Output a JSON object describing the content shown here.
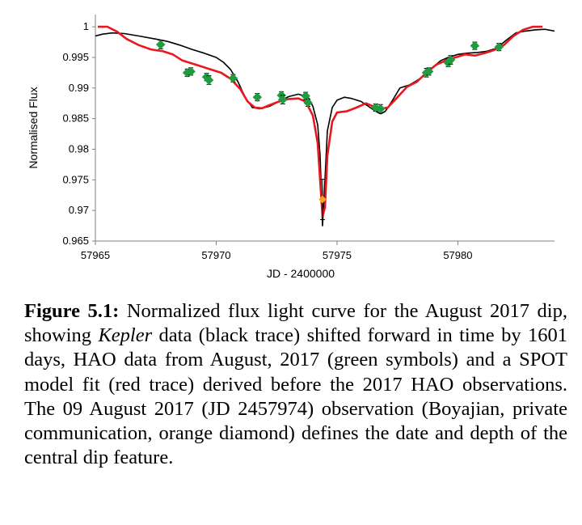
{
  "chart_data": {
    "type": "line",
    "xlabel": "JD - 2400000",
    "ylabel": "Normalised Flux",
    "xlim": [
      57965,
      57984
    ],
    "ylim": [
      0.965,
      1.002
    ],
    "x_ticks": [
      57965,
      57970,
      57975,
      57980
    ],
    "x_tick_labels": [
      "57965",
      "57970",
      "57975",
      "57980"
    ],
    "y_ticks": [
      0.965,
      0.97,
      0.975,
      0.98,
      0.985,
      0.99,
      0.995,
      1
    ],
    "y_tick_labels": [
      "0.965",
      "0.97",
      "0.975",
      "0.98",
      "0.985",
      "0.99",
      "0.995",
      "1"
    ],
    "grid": false,
    "legend": "none",
    "series": [
      {
        "kind": "line",
        "color": "#000000",
        "x": [
          57965,
          57965.3,
          57965.7,
          57966.2,
          57966.8,
          57967.5,
          57968.0,
          57968.5,
          57969.0,
          57969.5,
          57970.0,
          57970.3,
          57970.6,
          57970.9,
          57971.2,
          57971.5,
          57971.8,
          57972.2,
          57972.6,
          57973.0,
          57973.4,
          57973.8,
          57974.0,
          57974.2,
          57974.3,
          57974.4,
          57974.5,
          57974.6,
          57974.8,
          57975.0,
          57975.3,
          57975.6,
          57976.0,
          57976.3,
          57976.6,
          57976.8,
          57977.0,
          57977.3,
          57977.6,
          57978.0,
          57978.3,
          57978.6,
          57979.0,
          57979.3,
          57979.6,
          57980.0,
          57980.4,
          57980.8,
          57981.2,
          57981.6,
          57982.0,
          57982.4,
          57982.8,
          57983.2,
          57983.6,
          57984
        ],
        "y": [
          0.9985,
          0.9988,
          0.999,
          0.9989,
          0.9985,
          0.998,
          0.9976,
          0.997,
          0.9963,
          0.9957,
          0.995,
          0.9942,
          0.993,
          0.991,
          0.9885,
          0.9868,
          0.9866,
          0.987,
          0.9878,
          0.9886,
          0.989,
          0.9885,
          0.987,
          0.984,
          0.979,
          0.9675,
          0.975,
          0.983,
          0.9868,
          0.988,
          0.9885,
          0.9883,
          0.9878,
          0.987,
          0.9862,
          0.9858,
          0.9862,
          0.988,
          0.99,
          0.9905,
          0.9912,
          0.992,
          0.9935,
          0.9945,
          0.995,
          0.9955,
          0.9957,
          0.9958,
          0.996,
          0.9965,
          0.9978,
          0.999,
          0.9993,
          0.9995,
          0.9996,
          0.9993
        ]
      },
      {
        "kind": "line",
        "color": "#e8191e",
        "x": [
          57965.1,
          57965.5,
          57965.9,
          57966.3,
          57966.8,
          57967.3,
          57967.8,
          57968.2,
          57968.6,
          57969.0,
          57969.4,
          57969.8,
          57970.2,
          57970.6,
          57971.0,
          57971.3,
          57971.6,
          57971.9,
          57972.2,
          57972.6,
          57973.0,
          57973.4,
          57973.7,
          57974.0,
          57974.2,
          57974.3,
          57974.4,
          57974.5,
          57974.6,
          57974.8,
          57975.0,
          57975.4,
          57975.8,
          57976.2,
          57976.5,
          57976.8,
          57977.1,
          57977.5,
          57977.9,
          57978.3,
          57978.7,
          57979.1,
          57979.5,
          57979.9,
          57980.3,
          57980.7,
          57981.1,
          57981.5,
          57981.9,
          57982.3,
          57982.7,
          57983.1,
          57983.5
        ],
        "y": [
          1.0,
          1.0,
          0.9992,
          0.998,
          0.997,
          0.9963,
          0.996,
          0.9955,
          0.9945,
          0.994,
          0.9935,
          0.993,
          0.9925,
          0.9915,
          0.9898,
          0.9878,
          0.9868,
          0.9867,
          0.9872,
          0.9878,
          0.9882,
          0.9883,
          0.9878,
          0.9855,
          0.981,
          0.975,
          0.969,
          0.9705,
          0.979,
          0.9845,
          0.986,
          0.9862,
          0.9868,
          0.9875,
          0.987,
          0.9866,
          0.9868,
          0.9885,
          0.9902,
          0.991,
          0.9925,
          0.9938,
          0.9945,
          0.995,
          0.9955,
          0.9953,
          0.9957,
          0.9962,
          0.997,
          0.9985,
          0.9995,
          1.0,
          1.0
        ]
      },
      {
        "kind": "points",
        "color": "#1e9c40",
        "points": [
          {
            "x": 57967.7,
            "y": 0.9971,
            "err": 0.0007
          },
          {
            "x": 57968.8,
            "y": 0.9925,
            "err": 0.0006
          },
          {
            "x": 57968.95,
            "y": 0.9927,
            "err": 0.0006
          },
          {
            "x": 57969.6,
            "y": 0.9918,
            "err": 0.0006
          },
          {
            "x": 57969.7,
            "y": 0.9913,
            "err": 0.0007
          },
          {
            "x": 57970.7,
            "y": 0.9916,
            "err": 0.0006
          },
          {
            "x": 57971.7,
            "y": 0.9885,
            "err": 0.0006
          },
          {
            "x": 57972.7,
            "y": 0.9888,
            "err": 0.0006
          },
          {
            "x": 57972.75,
            "y": 0.9881,
            "err": 0.0007
          },
          {
            "x": 57973.7,
            "y": 0.9887,
            "err": 0.0006
          },
          {
            "x": 57973.8,
            "y": 0.9876,
            "err": 0.0006
          },
          {
            "x": 57976.6,
            "y": 0.9868,
            "err": 0.0006
          },
          {
            "x": 57976.8,
            "y": 0.9866,
            "err": 0.0007
          },
          {
            "x": 57978.7,
            "y": 0.9925,
            "err": 0.0007
          },
          {
            "x": 57978.8,
            "y": 0.9927,
            "err": 0.0006
          },
          {
            "x": 57979.6,
            "y": 0.9941,
            "err": 0.0006
          },
          {
            "x": 57979.7,
            "y": 0.9946,
            "err": 0.0007
          },
          {
            "x": 57980.7,
            "y": 0.9969,
            "err": 0.0006
          },
          {
            "x": 57981.7,
            "y": 0.9967,
            "err": 0.0006
          }
        ]
      },
      {
        "kind": "points",
        "color": "#f5a31a",
        "points": [
          {
            "x": 57974.4,
            "y": 0.9718,
            "err": 0.0033
          }
        ]
      }
    ]
  },
  "caption": {
    "label": "Figure 5.1:",
    "before_italic": " Normalized flux light curve for the August 2017 dip, showing ",
    "italic": "Kepler",
    "after_italic": " data (black trace) shifted forward in time by 1601 days, HAO data from August, 2017 (green symbols) and a SPOT model fit (red trace) derived before the 2017 HAO observations. The 09 August 2017 (JD 2457974) observation (Boyajian, private communication, orange diamond) defines the date and depth of the central dip feature."
  }
}
